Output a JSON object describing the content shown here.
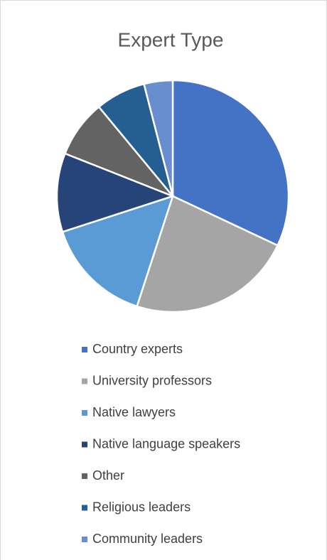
{
  "chart_data": {
    "type": "pie",
    "title": "Expert Type",
    "categories": [
      "Country experts",
      "University professors",
      "Native lawyers",
      "Native language speakers",
      "Other",
      "Religious leaders",
      "Community leaders"
    ],
    "values": [
      32,
      23,
      15,
      11,
      8,
      7,
      4
    ],
    "colors": [
      "#4472c4",
      "#a5a5a5",
      "#5b9bd5",
      "#264478",
      "#636363",
      "#255e91",
      "#698ed0"
    ],
    "legend": "bottom"
  }
}
